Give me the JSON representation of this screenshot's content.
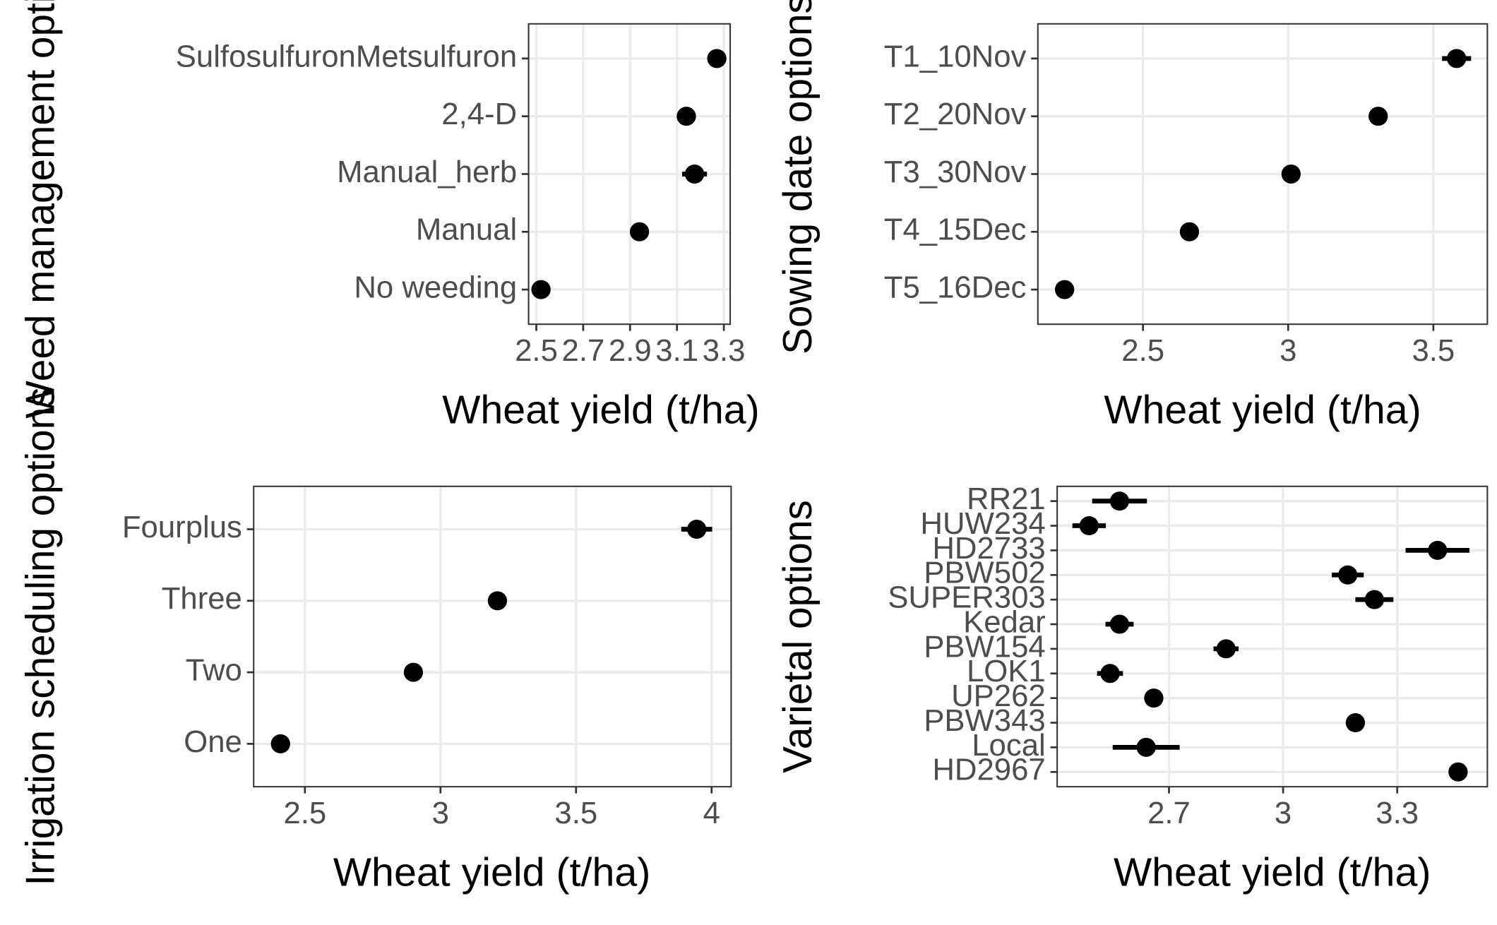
{
  "chart_data": [
    {
      "type": "dot",
      "x_label": "Wheat yield (t/ha)",
      "y_label": "Weed management options",
      "categories": [
        "SulfosulfuronMetsulfuron",
        "2,4-D",
        "Manual_herb",
        "Manual",
        "No weeding"
      ],
      "values": [
        3.27,
        3.14,
        3.175,
        2.94,
        2.52
      ],
      "errors": [
        0.02,
        0.02,
        0.053,
        0.02,
        0.02
      ],
      "xlim": [
        2.467,
        3.327
      ],
      "xticks": [
        2.5,
        2.7,
        2.9,
        3.1,
        3.3
      ],
      "grid": true,
      "color": "#000000"
    },
    {
      "type": "dot",
      "x_label": "Wheat yield (t/ha)",
      "y_label": "Sowing date options",
      "categories": [
        "T1_10Nov",
        "T2_20Nov",
        "T3_30Nov",
        "T4_15Dec",
        "T5_16Dec"
      ],
      "values": [
        3.58,
        3.31,
        3.01,
        2.66,
        2.23
      ],
      "errors": [
        0.05,
        0.02,
        0.02,
        0.02,
        0.02
      ],
      "xlim": [
        2.138,
        3.686
      ],
      "xticks": [
        2.5,
        3.0,
        3.5
      ],
      "grid": true,
      "color": "#000000"
    },
    {
      "type": "dot",
      "x_label": "Wheat yield (t/ha)",
      "y_label": "Irrigation scheduling options",
      "categories": [
        "Fourplus",
        "Three",
        "Two",
        "One"
      ],
      "values": [
        3.945,
        3.21,
        2.9,
        2.41
      ],
      "errors": [
        0.057,
        0.02,
        0.02,
        0.02
      ],
      "xlim": [
        2.311,
        4.072
      ],
      "xticks": [
        2.5,
        3.0,
        3.5,
        4.0
      ],
      "grid": true,
      "color": "#000000"
    },
    {
      "type": "dot",
      "x_label": "Wheat yield (t/ha)",
      "y_label": "Varietal options",
      "categories": [
        "RR21",
        "HUW234",
        "HD2733",
        "PBW502",
        "SUPER303",
        "Kedar",
        "PBW154",
        "LOK1",
        "UP262",
        "PBW343",
        "Local",
        "HD2967"
      ],
      "values": [
        2.57,
        2.49,
        3.406,
        3.17,
        3.24,
        2.57,
        2.85,
        2.545,
        2.66,
        3.19,
        2.64,
        3.46
      ],
      "errors": [
        0.072,
        0.044,
        0.084,
        0.042,
        0.05,
        0.037,
        0.033,
        0.034,
        0.024,
        0.02,
        0.088,
        0.02
      ],
      "xlim": [
        2.406,
        3.537
      ],
      "xticks": [
        2.7,
        3.0,
        3.3
      ],
      "grid": true,
      "color": "#000000"
    }
  ]
}
